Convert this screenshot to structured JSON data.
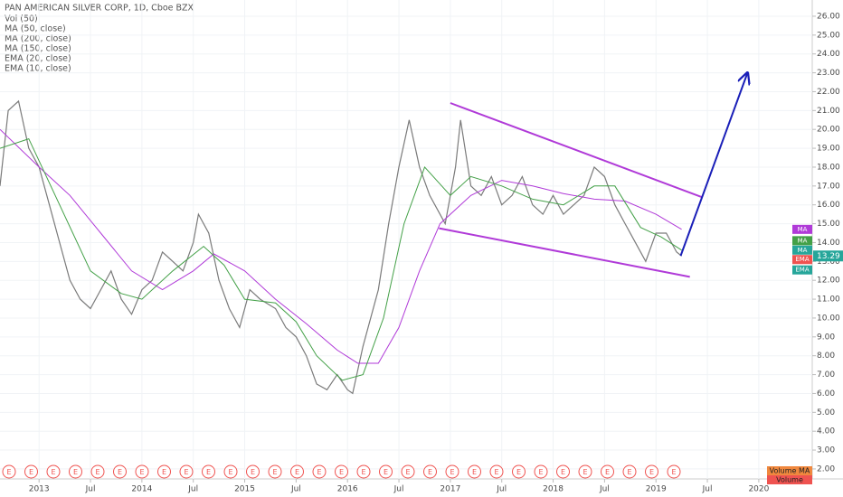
{
  "chart_data": {
    "type": "line",
    "title": "PAN AMERICAN SILVER CORP, 1D, Cboe BZX",
    "legend": [
      "Vol (50)",
      "MA (50, close)",
      "MA (200, close)",
      "MA (150, close)",
      "EMA (20, close)",
      "EMA (10, close)"
    ],
    "xlim": [
      2012.62,
      2020.52
    ],
    "xticks": [
      {
        "value": 2013,
        "label": "2013"
      },
      {
        "value": 2013.5,
        "label": "Jul"
      },
      {
        "value": 2014,
        "label": "2014"
      },
      {
        "value": 2014.5,
        "label": "Jul"
      },
      {
        "value": 2015,
        "label": "2015"
      },
      {
        "value": 2015.5,
        "label": "Jul"
      },
      {
        "value": 2016,
        "label": "2016"
      },
      {
        "value": 2016.5,
        "label": "Jul"
      },
      {
        "value": 2017,
        "label": "2017"
      },
      {
        "value": 2017.5,
        "label": "Jul"
      },
      {
        "value": 2018,
        "label": "2018"
      },
      {
        "value": 2018.5,
        "label": "Jul"
      },
      {
        "value": 2019,
        "label": "2019"
      },
      {
        "value": 2019.5,
        "label": "Jul"
      },
      {
        "value": 2020,
        "label": "2020"
      }
    ],
    "ylim": [
      1.47,
      26.86
    ],
    "yticks": [
      {
        "value": 2,
        "label": "2.00"
      },
      {
        "value": 3,
        "label": "3.00"
      },
      {
        "value": 4,
        "label": "4.00"
      },
      {
        "value": 5,
        "label": "5.00"
      },
      {
        "value": 6,
        "label": "6.00"
      },
      {
        "value": 7,
        "label": "7.00"
      },
      {
        "value": 8,
        "label": "8.00"
      },
      {
        "value": 9,
        "label": "9.00"
      },
      {
        "value": 10,
        "label": "10.00"
      },
      {
        "value": 11,
        "label": "11.00"
      },
      {
        "value": 12,
        "label": "12.00"
      },
      {
        "value": 13,
        "label": "13.00"
      },
      {
        "value": 14,
        "label": "14.00"
      },
      {
        "value": 15,
        "label": "15.00"
      },
      {
        "value": 16,
        "label": "16.00"
      },
      {
        "value": 17,
        "label": "17.00"
      },
      {
        "value": 18,
        "label": "18.00"
      },
      {
        "value": 19,
        "label": "19.00"
      },
      {
        "value": 20,
        "label": "20.00"
      },
      {
        "value": 21,
        "label": "21.00"
      },
      {
        "value": 22,
        "label": "22.00"
      },
      {
        "value": 23,
        "label": "23.00"
      },
      {
        "value": 24,
        "label": "24.00"
      },
      {
        "value": 25,
        "label": "25.00"
      },
      {
        "value": 26,
        "label": "26.00"
      }
    ],
    "series": [
      {
        "color": "#7a7a7a",
        "x": [
          2012.62,
          2012.7,
          2012.8,
          2012.9,
          2013.0,
          2013.1,
          2013.2,
          2013.3,
          2013.4,
          2013.5,
          2013.6,
          2013.7,
          2013.8,
          2013.9,
          2014.0,
          2014.1,
          2014.2,
          2014.3,
          2014.4,
          2014.5,
          2014.55,
          2014.65,
          2014.75,
          2014.85,
          2014.95,
          2015.05,
          2015.15,
          2015.3,
          2015.4,
          2015.5,
          2015.6,
          2015.7,
          2015.8,
          2015.9,
          2016.0,
          2016.05,
          2016.15,
          2016.3,
          2016.4,
          2016.5,
          2016.6,
          2016.7,
          2016.8,
          2016.95,
          2017.05,
          2017.1,
          2017.2,
          2017.3,
          2017.4,
          2017.5,
          2017.6,
          2017.7,
          2017.8,
          2017.9,
          2018.0,
          2018.1,
          2018.2,
          2018.3,
          2018.4,
          2018.5,
          2018.6,
          2018.7,
          2018.8,
          2018.9,
          2019.0,
          2019.1,
          2019.2,
          2019.25
        ],
        "values": [
          17,
          21,
          21.5,
          19,
          18,
          16,
          14,
          12,
          11,
          10.5,
          11.5,
          12.5,
          11,
          10.2,
          11.5,
          12,
          13.5,
          13,
          12.5,
          14,
          15.5,
          14.5,
          12,
          10.5,
          9.5,
          11.5,
          11,
          10.5,
          9.5,
          9,
          8,
          6.5,
          6.2,
          7,
          6.2,
          6,
          8.5,
          11.5,
          15,
          18,
          20.5,
          18,
          16.5,
          15,
          18,
          20.5,
          17,
          16.5,
          17.5,
          16,
          16.5,
          17.5,
          16,
          15.5,
          16.5,
          15.5,
          16,
          16.5,
          18,
          17.5,
          16,
          15,
          14,
          13,
          14.5,
          14.5,
          13.5,
          13.29
        ]
      },
      {
        "color": "#b03ad8",
        "x": [
          2012.62,
          2013.0,
          2013.3,
          2013.6,
          2013.9,
          2014.2,
          2014.5,
          2014.7,
          2015.0,
          2015.3,
          2015.6,
          2015.9,
          2016.1,
          2016.3,
          2016.5,
          2016.7,
          2016.9,
          2017.2,
          2017.5,
          2017.8,
          2018.1,
          2018.4,
          2018.7,
          2019.0,
          2019.25
        ],
        "values": [
          20,
          18,
          16.5,
          14.5,
          12.5,
          11.5,
          12.5,
          13.4,
          12.5,
          11,
          9.7,
          8.3,
          7.6,
          7.6,
          9.5,
          12.5,
          15,
          16.5,
          17.3,
          17,
          16.6,
          16.3,
          16.2,
          15.5,
          14.7
        ]
      },
      {
        "color": "#43a047",
        "x": [
          2012.62,
          2012.9,
          2013.2,
          2013.5,
          2013.8,
          2014.0,
          2014.3,
          2014.6,
          2014.8,
          2015.0,
          2015.3,
          2015.5,
          2015.7,
          2015.95,
          2016.15,
          2016.35,
          2016.55,
          2016.75,
          2017.0,
          2017.2,
          2017.5,
          2017.8,
          2018.1,
          2018.4,
          2018.6,
          2018.85,
          2019.05,
          2019.25
        ],
        "values": [
          19,
          19.5,
          16,
          12.5,
          11.3,
          11,
          12.5,
          13.8,
          12.8,
          11,
          10.8,
          9.8,
          8,
          6.7,
          7,
          10,
          15,
          18,
          16.5,
          17.5,
          17,
          16.3,
          16,
          17,
          17,
          14.8,
          14.3,
          13.6
        ]
      }
    ],
    "annotations": [
      {
        "color": "#b03ad8",
        "x": [
          2017.0,
          2019.45
        ],
        "values": [
          21.4,
          16.4
        ]
      },
      {
        "color": "#b03ad8",
        "x": [
          2016.89,
          2019.33
        ],
        "values": [
          14.76,
          12.18
        ]
      },
      {
        "color": "#1a1fb8",
        "x": [
          2019.24,
          2019.89
        ],
        "values": [
          13.3,
          23.0
        ],
        "arrow": true
      }
    ],
    "badges": [
      {
        "label": "MA",
        "value": 14.7,
        "color": "#b03ad8"
      },
      {
        "label": "MA",
        "value": 14.1,
        "color": "#43a047"
      },
      {
        "label": "MA",
        "value": 13.6,
        "color": "#26a69a"
      },
      {
        "label": "EMA",
        "value": 13.1,
        "color": "#ef5350"
      },
      {
        "label": "EMA",
        "value": 12.55,
        "color": "#26a69a"
      }
    ],
    "last_price": 13.29,
    "volume_labels": [
      "Volume MA",
      "Volume"
    ],
    "earnings_label": "E"
  }
}
